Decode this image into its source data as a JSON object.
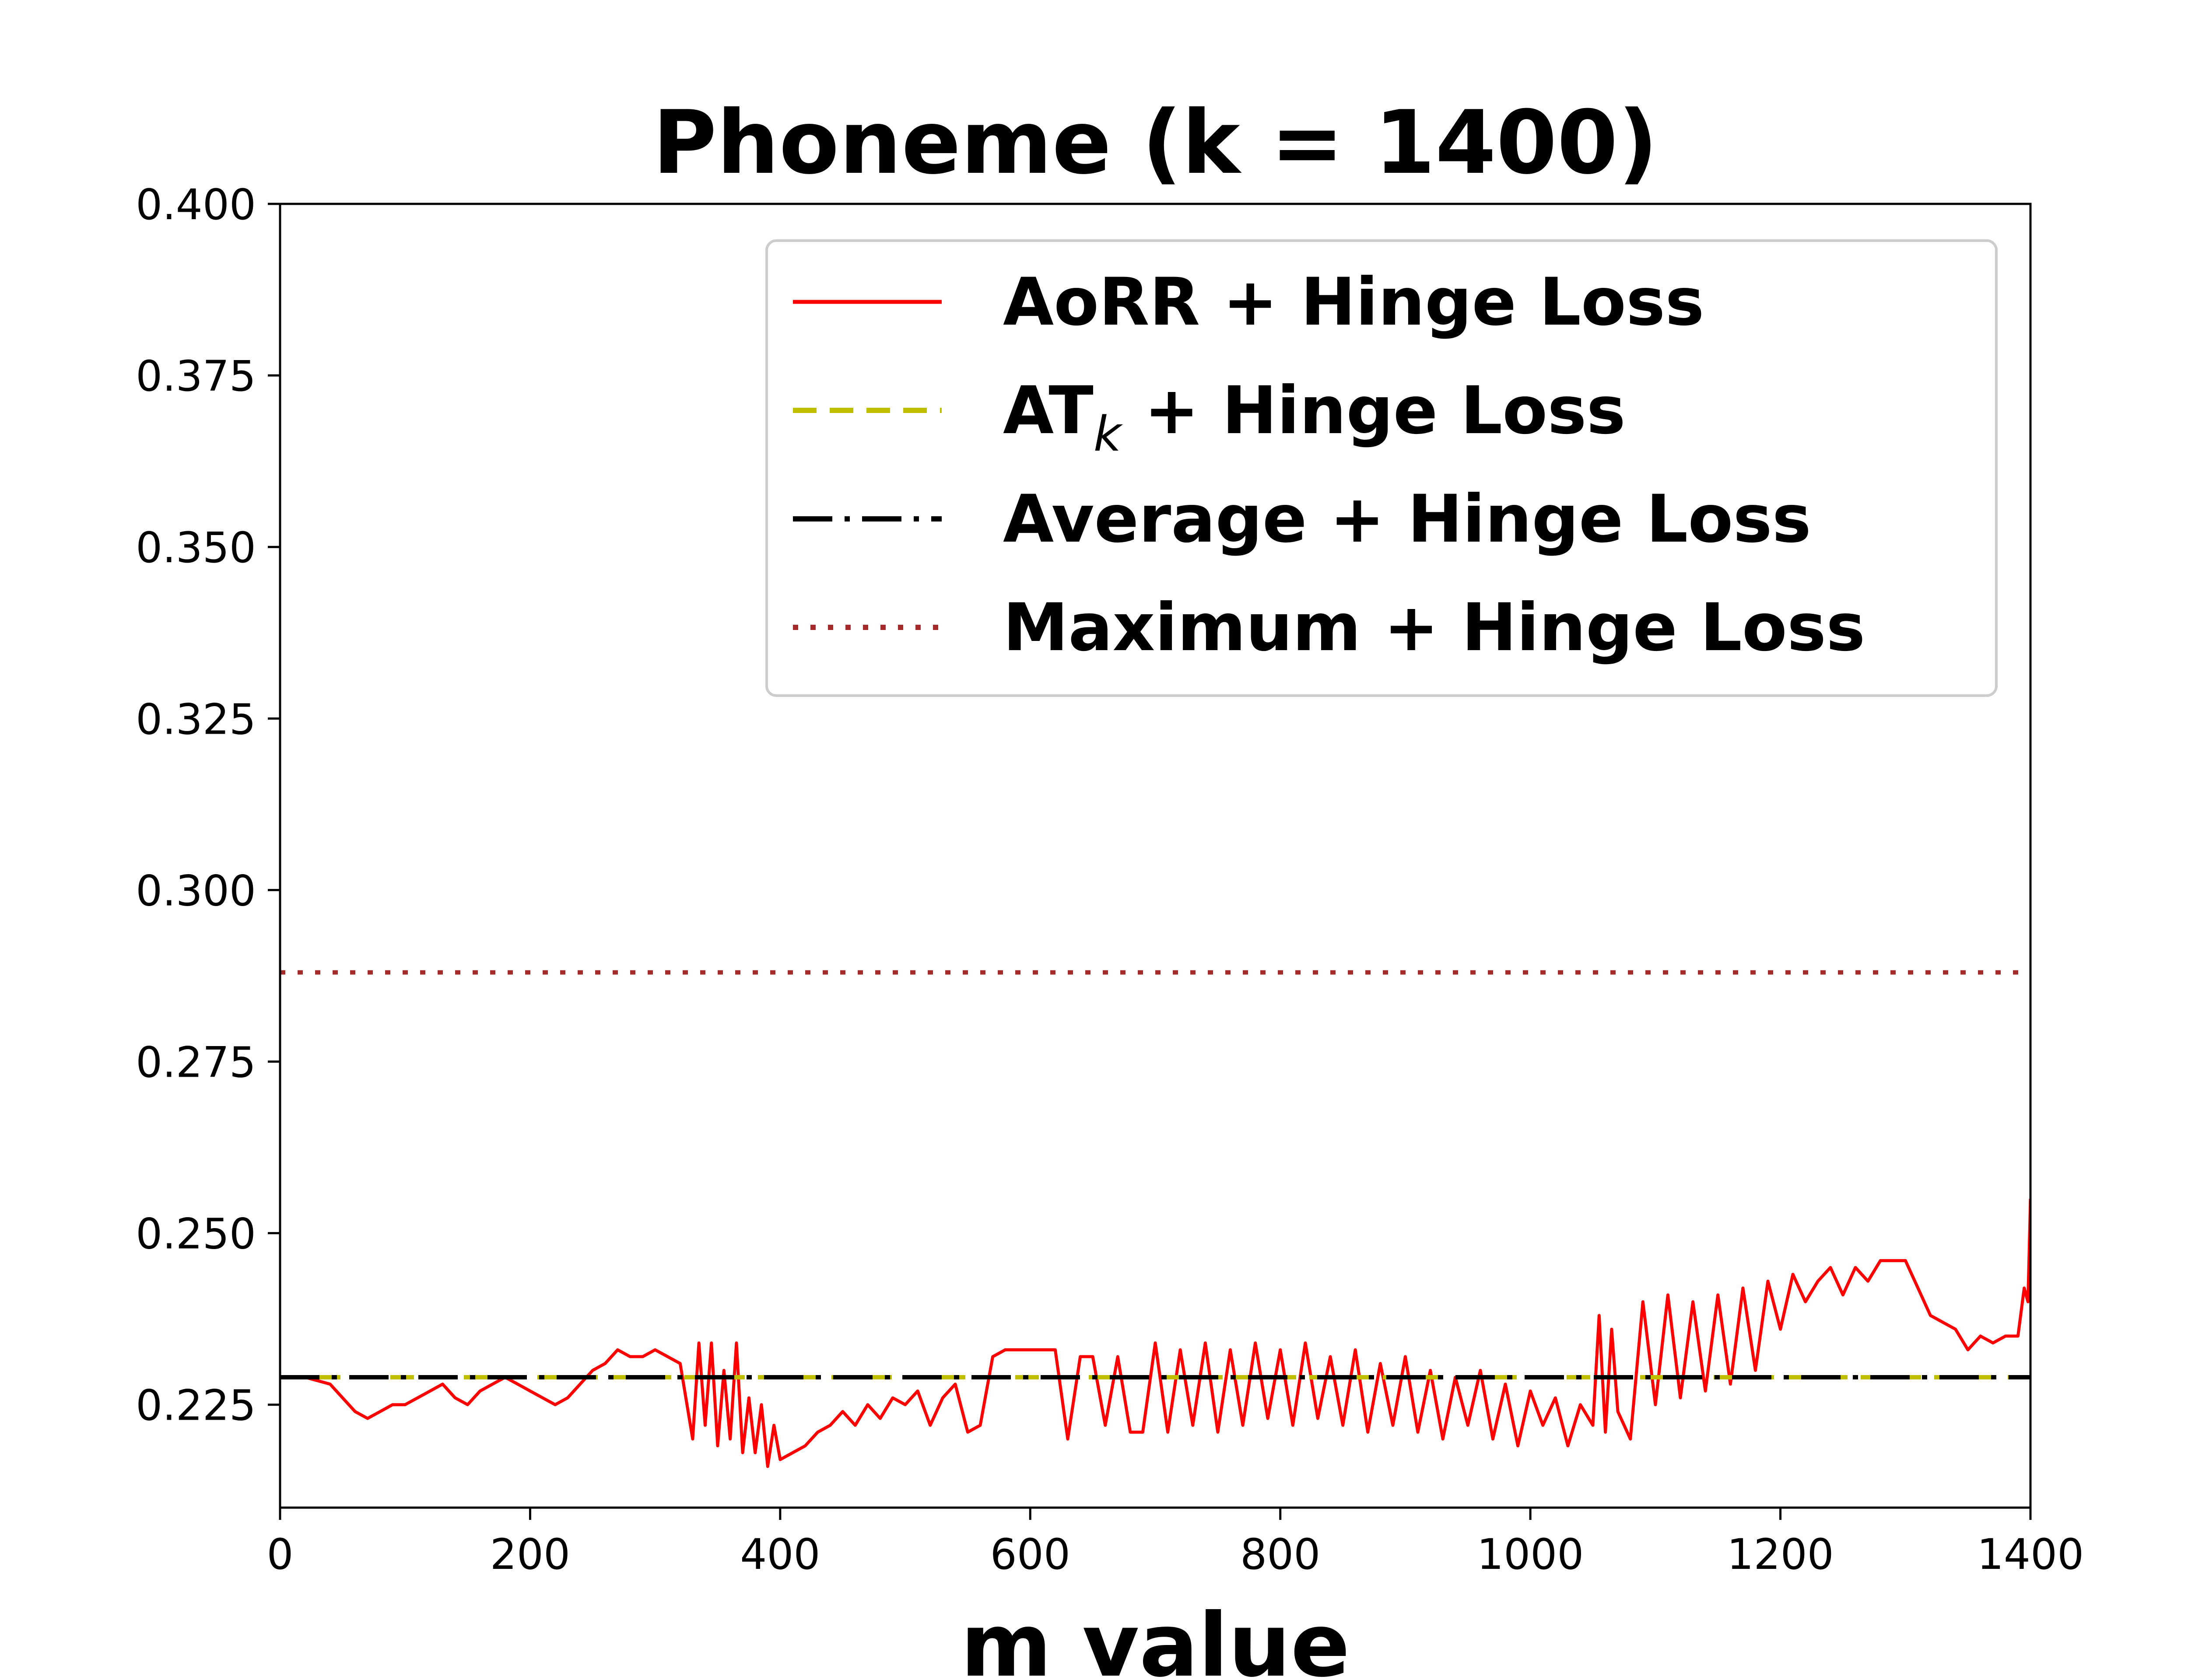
{
  "chart_data": {
    "type": "line",
    "title": "Phoneme (k = 1400)",
    "xlabel": "m value",
    "ylabel": "",
    "xlim": [
      0,
      1400
    ],
    "ylim": [
      0.21,
      0.4
    ],
    "xticks": [
      "0",
      "200",
      "400",
      "600",
      "800",
      "1000",
      "1200",
      "1400"
    ],
    "yticks": [
      "0.225",
      "0.250",
      "0.275",
      "0.300",
      "0.325",
      "0.350",
      "0.375",
      "0.400"
    ],
    "grid": false,
    "legend_position": "upper-right",
    "series": [
      {
        "name": "AoRR + Hinge Loss",
        "color": "#ff0000",
        "style": "solid",
        "x": [
          0,
          20,
          40,
          50,
          60,
          70,
          80,
          90,
          100,
          110,
          120,
          130,
          140,
          150,
          160,
          170,
          180,
          190,
          200,
          210,
          220,
          230,
          240,
          250,
          260,
          270,
          280,
          290,
          300,
          310,
          320,
          330,
          335,
          340,
          345,
          350,
          355,
          360,
          365,
          370,
          375,
          380,
          385,
          390,
          395,
          400,
          410,
          420,
          430,
          440,
          450,
          460,
          470,
          480,
          490,
          500,
          510,
          520,
          530,
          540,
          550,
          560,
          570,
          580,
          590,
          600,
          610,
          620,
          630,
          640,
          650,
          660,
          670,
          680,
          690,
          700,
          710,
          720,
          730,
          740,
          750,
          760,
          770,
          780,
          790,
          800,
          810,
          820,
          830,
          840,
          850,
          860,
          870,
          880,
          890,
          900,
          910,
          920,
          930,
          940,
          950,
          960,
          970,
          980,
          990,
          1000,
          1010,
          1020,
          1030,
          1040,
          1050,
          1055,
          1060,
          1065,
          1070,
          1080,
          1090,
          1100,
          1110,
          1120,
          1130,
          1140,
          1150,
          1160,
          1170,
          1180,
          1190,
          1200,
          1210,
          1220,
          1230,
          1240,
          1250,
          1260,
          1270,
          1280,
          1290,
          1300,
          1310,
          1320,
          1330,
          1340,
          1350,
          1360,
          1370,
          1380,
          1390,
          1395,
          1398,
          1400
        ],
        "y": [
          0.229,
          0.229,
          0.228,
          0.226,
          0.224,
          0.223,
          0.224,
          0.225,
          0.225,
          0.226,
          0.227,
          0.228,
          0.226,
          0.225,
          0.227,
          0.228,
          0.229,
          0.228,
          0.227,
          0.226,
          0.225,
          0.226,
          0.228,
          0.23,
          0.231,
          0.233,
          0.232,
          0.232,
          0.233,
          0.232,
          0.231,
          0.22,
          0.234,
          0.222,
          0.234,
          0.219,
          0.23,
          0.22,
          0.234,
          0.218,
          0.226,
          0.218,
          0.225,
          0.216,
          0.222,
          0.217,
          0.218,
          0.219,
          0.221,
          0.222,
          0.224,
          0.222,
          0.225,
          0.223,
          0.226,
          0.225,
          0.227,
          0.222,
          0.226,
          0.228,
          0.221,
          0.222,
          0.232,
          0.233,
          0.233,
          0.233,
          0.233,
          0.233,
          0.22,
          0.232,
          0.232,
          0.222,
          0.232,
          0.221,
          0.221,
          0.234,
          0.221,
          0.233,
          0.222,
          0.234,
          0.221,
          0.233,
          0.222,
          0.234,
          0.223,
          0.233,
          0.222,
          0.234,
          0.223,
          0.232,
          0.222,
          0.233,
          0.221,
          0.231,
          0.222,
          0.232,
          0.221,
          0.23,
          0.22,
          0.229,
          0.222,
          0.23,
          0.22,
          0.228,
          0.219,
          0.227,
          0.222,
          0.226,
          0.219,
          0.225,
          0.222,
          0.238,
          0.221,
          0.236,
          0.224,
          0.22,
          0.24,
          0.225,
          0.241,
          0.226,
          0.24,
          0.227,
          0.241,
          0.228,
          0.242,
          0.23,
          0.243,
          0.236,
          0.244,
          0.24,
          0.243,
          0.245,
          0.241,
          0.245,
          0.243,
          0.246,
          0.246,
          0.246,
          0.242,
          0.238,
          0.237,
          0.236,
          0.233,
          0.235,
          0.234,
          0.235,
          0.235,
          0.242,
          0.24,
          0.255
        ]
      },
      {
        "name": "AT$_k$ + Hinge Loss",
        "color": "#bfbf00",
        "style": "dashed",
        "x": [
          0,
          1400
        ],
        "y": [
          0.229,
          0.229
        ]
      },
      {
        "name": "Average + Hinge Loss",
        "color": "#000000",
        "style": "dashdot",
        "x": [
          0,
          1400
        ],
        "y": [
          0.229,
          0.229
        ]
      },
      {
        "name": "Maximum + Hinge Loss",
        "color": "#a52a2a",
        "style": "dotted",
        "x": [
          0,
          1400
        ],
        "y": [
          0.288,
          0.288
        ]
      }
    ]
  }
}
